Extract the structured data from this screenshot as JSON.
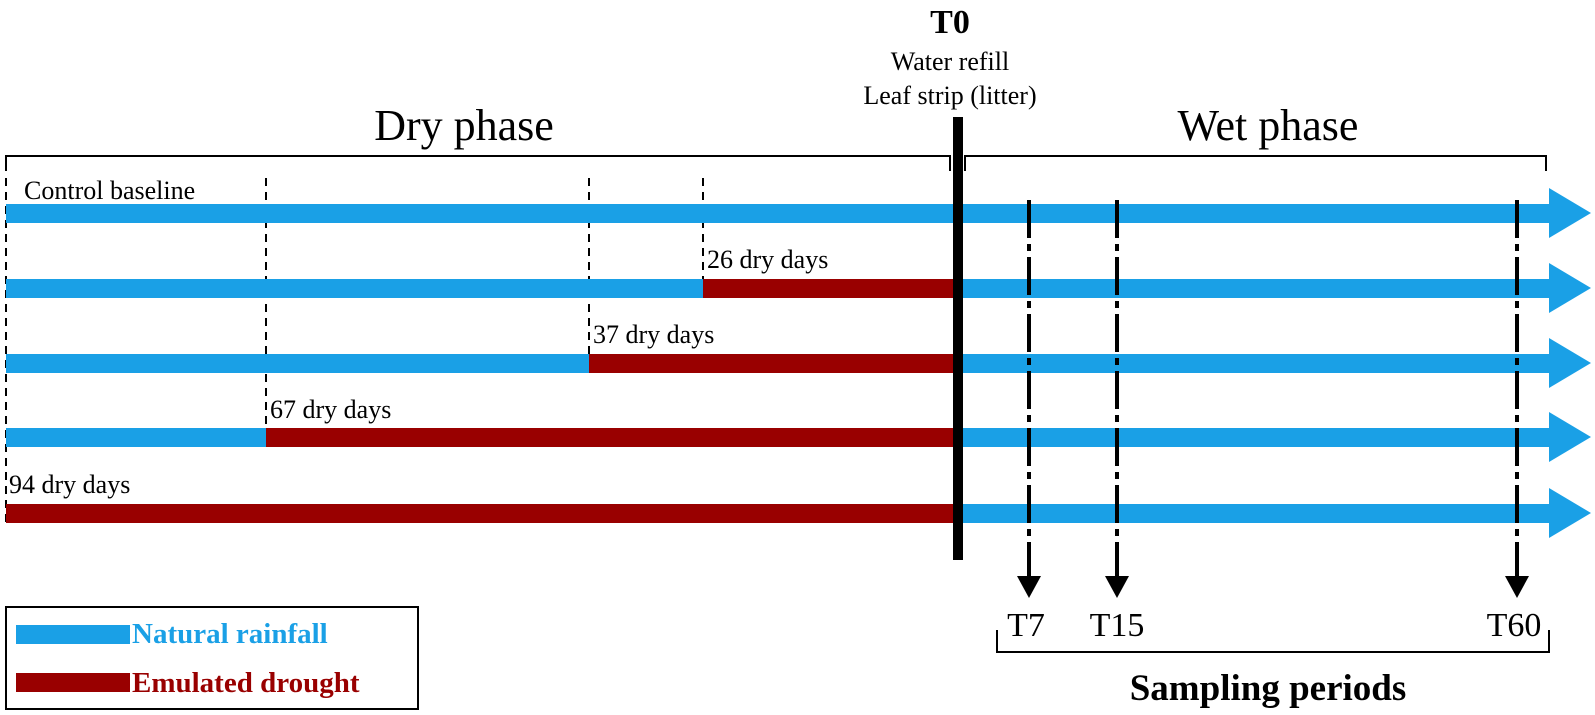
{
  "t0": {
    "title": "T0",
    "lines": [
      "Water refill",
      "Leaf strip (litter)"
    ]
  },
  "phases": {
    "dry": "Dry phase",
    "wet": "Wet phase"
  },
  "colors": {
    "natural": "#1aa0e6",
    "drought": "#990000",
    "line": "#000000"
  },
  "rows": [
    {
      "label": "Control baseline",
      "dry_days": 0
    },
    {
      "label": "26 dry days",
      "dry_days": 26
    },
    {
      "label": "37 dry days",
      "dry_days": 37
    },
    {
      "label": "67 dry days",
      "dry_days": 67
    },
    {
      "label": "94 dry days",
      "dry_days": 94
    }
  ],
  "sampling": {
    "title": "Sampling periods",
    "days": [
      7,
      15,
      60
    ],
    "labels": [
      "T7",
      "T15",
      "T60"
    ]
  },
  "legend": {
    "natural": "Natural rainfall",
    "drought": "Emulated drought"
  }
}
